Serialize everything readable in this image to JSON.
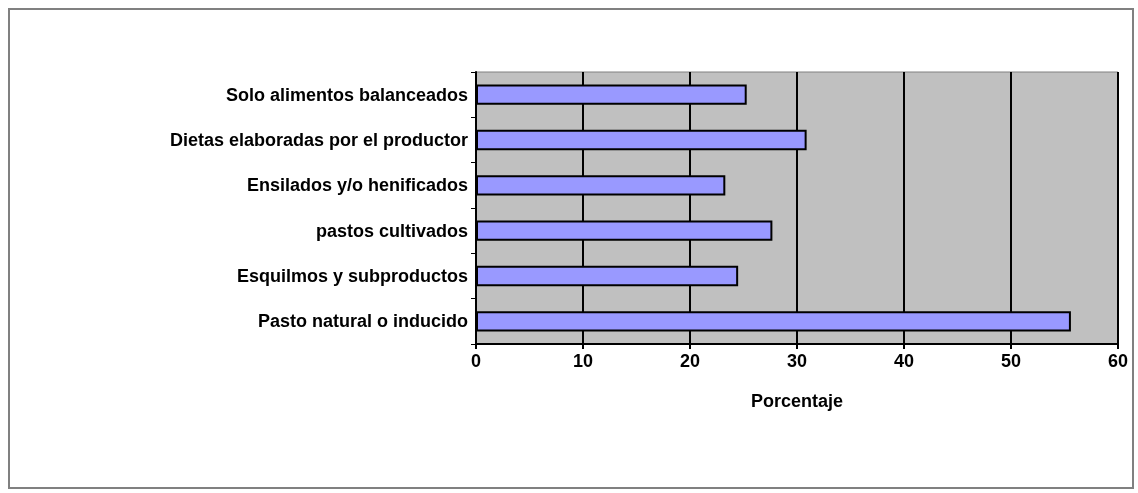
{
  "chart_data": {
    "type": "bar",
    "orientation": "horizontal",
    "xlabel": "Porcentaje",
    "categories": [
      "Solo alimentos balanceados",
      "Dietas elaboradas por el productor",
      "Ensilados y/o henificados",
      "pastos cultivados",
      "Esquilmos y subproductos",
      "Pasto natural o inducido"
    ],
    "values": [
      25.3,
      30.9,
      23.3,
      27.7,
      24.5,
      55.6
    ],
    "color": "#9999ff",
    "xlim": [
      0,
      60
    ],
    "xticks": [
      0,
      10,
      20,
      30,
      40,
      50,
      60
    ],
    "grid": "x"
  }
}
